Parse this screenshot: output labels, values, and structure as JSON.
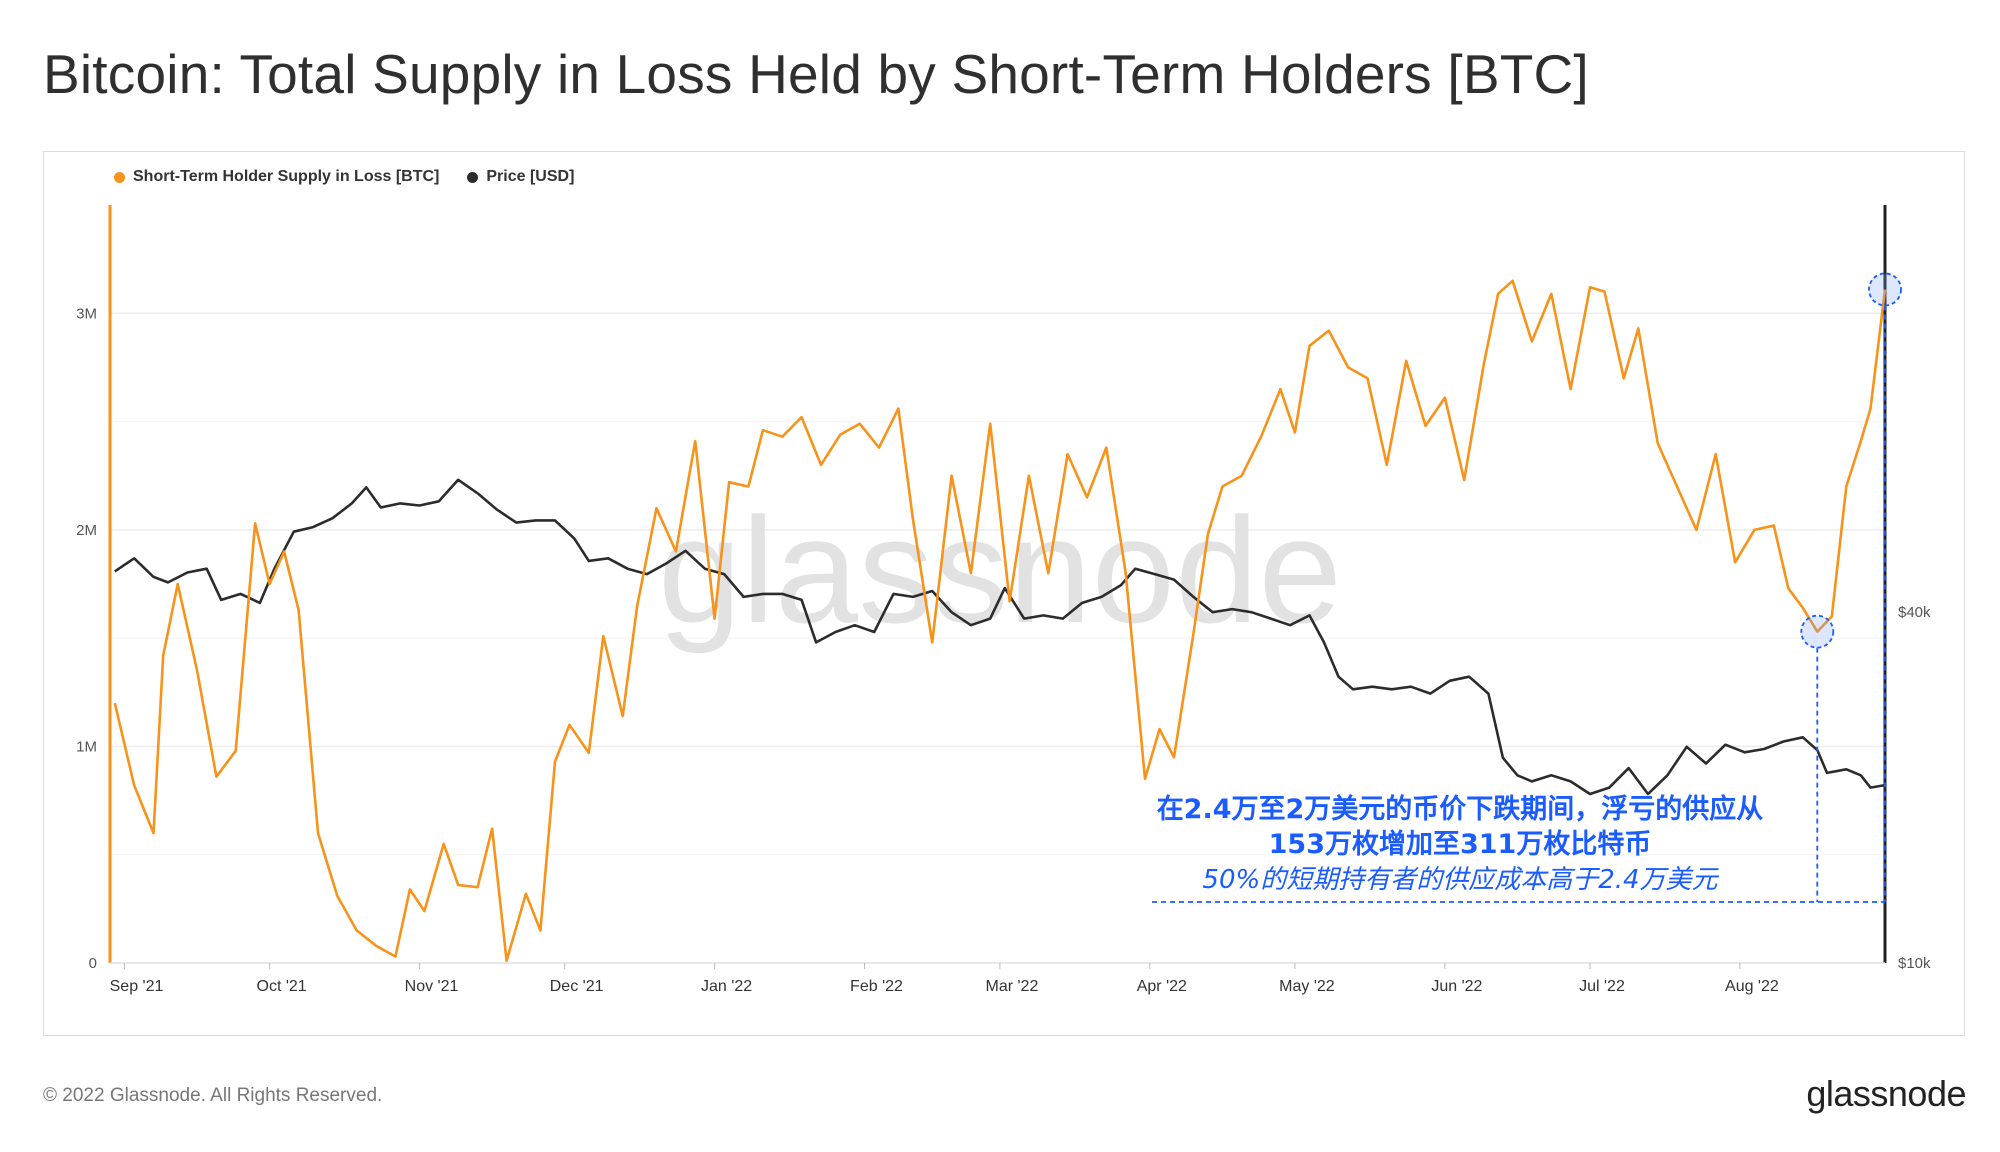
{
  "title": "Bitcoin: Total Supply in Loss Held by Short-Term Holders [BTC]",
  "footer": {
    "copyright": "© 2022 Glassnode. All Rights Reserved.",
    "logo": "glassnode"
  },
  "watermark": "glassnode",
  "colors": {
    "supply": "#f7931a",
    "price": "#2c2c2c",
    "annotation": "#1a5cff",
    "grid": "#ececec"
  },
  "annotation": {
    "line1": "在2.4万至2万美元的币价下跌期间，浮亏的供应从",
    "line2": "153万枚增加至311万枚比特币",
    "line3": "50%的短期持有者的供应成本高于2.4万美元"
  },
  "chart_data": {
    "type": "line",
    "title": "Bitcoin: Total Supply in Loss Held by Short-Term Holders [BTC]",
    "legend_position": "top-left",
    "grid": true,
    "x_ticks": [
      "Sep '21",
      "Oct '21",
      "Nov '21",
      "Dec '21",
      "Jan '22",
      "Feb '22",
      "Mar '22",
      "Apr '22",
      "May '22",
      "Jun '22",
      "Jul '22",
      "Aug '22"
    ],
    "y_left": {
      "ticks": [
        "0",
        "1M",
        "2M",
        "3M"
      ],
      "range": [
        0,
        3500000
      ]
    },
    "y_right": {
      "ticks": [
        "$10k",
        "$40k"
      ],
      "scale": "log",
      "range": [
        10000,
        200000
      ]
    },
    "x_range": [
      "2021-08-29",
      "2022-08-31"
    ],
    "series": [
      {
        "name": "Short-Term Holder Supply in Loss [BTC]",
        "axis": "left",
        "points": [
          [
            "2021-08-30",
            1200000
          ],
          [
            "2021-09-03",
            820000
          ],
          [
            "2021-09-07",
            600000
          ],
          [
            "2021-09-09",
            1420000
          ],
          [
            "2021-09-12",
            1750000
          ],
          [
            "2021-09-16",
            1350000
          ],
          [
            "2021-09-20",
            860000
          ],
          [
            "2021-09-24",
            980000
          ],
          [
            "2021-09-28",
            2030000
          ],
          [
            "2021-10-01",
            1750000
          ],
          [
            "2021-10-04",
            1900000
          ],
          [
            "2021-10-07",
            1630000
          ],
          [
            "2021-10-11",
            600000
          ],
          [
            "2021-10-15",
            310000
          ],
          [
            "2021-10-19",
            150000
          ],
          [
            "2021-10-23",
            80000
          ],
          [
            "2021-10-27",
            30000
          ],
          [
            "2021-10-30",
            340000
          ],
          [
            "2021-11-02",
            240000
          ],
          [
            "2021-11-06",
            550000
          ],
          [
            "2021-11-09",
            360000
          ],
          [
            "2021-11-13",
            350000
          ],
          [
            "2021-11-16",
            620000
          ],
          [
            "2021-11-19",
            10000
          ],
          [
            "2021-11-23",
            320000
          ],
          [
            "2021-11-26",
            150000
          ],
          [
            "2021-11-29",
            930000
          ],
          [
            "2021-12-02",
            1100000
          ],
          [
            "2021-12-06",
            970000
          ],
          [
            "2021-12-09",
            1510000
          ],
          [
            "2021-12-13",
            1140000
          ],
          [
            "2021-12-16",
            1650000
          ],
          [
            "2021-12-20",
            2100000
          ],
          [
            "2021-12-24",
            1900000
          ],
          [
            "2021-12-28",
            2410000
          ],
          [
            "2022-01-01",
            1590000
          ],
          [
            "2022-01-04",
            2220000
          ],
          [
            "2022-01-08",
            2200000
          ],
          [
            "2022-01-11",
            2460000
          ],
          [
            "2022-01-15",
            2430000
          ],
          [
            "2022-01-19",
            2520000
          ],
          [
            "2022-01-23",
            2300000
          ],
          [
            "2022-01-27",
            2440000
          ],
          [
            "2022-01-31",
            2490000
          ],
          [
            "2022-02-04",
            2380000
          ],
          [
            "2022-02-08",
            2560000
          ],
          [
            "2022-02-11",
            2050000
          ],
          [
            "2022-02-15",
            1480000
          ],
          [
            "2022-02-19",
            2250000
          ],
          [
            "2022-02-23",
            1800000
          ],
          [
            "2022-02-27",
            2490000
          ],
          [
            "2022-03-03",
            1670000
          ],
          [
            "2022-03-07",
            2250000
          ],
          [
            "2022-03-11",
            1800000
          ],
          [
            "2022-03-15",
            2350000
          ],
          [
            "2022-03-19",
            2150000
          ],
          [
            "2022-03-23",
            2380000
          ],
          [
            "2022-03-27",
            1800000
          ],
          [
            "2022-03-31",
            850000
          ],
          [
            "2022-04-03",
            1080000
          ],
          [
            "2022-04-06",
            950000
          ],
          [
            "2022-04-10",
            1520000
          ],
          [
            "2022-04-13",
            1980000
          ],
          [
            "2022-04-16",
            2200000
          ],
          [
            "2022-04-20",
            2250000
          ],
          [
            "2022-04-24",
            2430000
          ],
          [
            "2022-04-28",
            2650000
          ],
          [
            "2022-05-01",
            2450000
          ],
          [
            "2022-05-04",
            2850000
          ],
          [
            "2022-05-08",
            2920000
          ],
          [
            "2022-05-12",
            2750000
          ],
          [
            "2022-05-16",
            2700000
          ],
          [
            "2022-05-20",
            2300000
          ],
          [
            "2022-05-24",
            2780000
          ],
          [
            "2022-05-28",
            2480000
          ],
          [
            "2022-06-01",
            2610000
          ],
          [
            "2022-06-05",
            2230000
          ],
          [
            "2022-06-09",
            2760000
          ],
          [
            "2022-06-12",
            3090000
          ],
          [
            "2022-06-15",
            3150000
          ],
          [
            "2022-06-19",
            2870000
          ],
          [
            "2022-06-23",
            3090000
          ],
          [
            "2022-06-27",
            2650000
          ],
          [
            "2022-07-01",
            3120000
          ],
          [
            "2022-07-04",
            3100000
          ],
          [
            "2022-07-08",
            2700000
          ],
          [
            "2022-07-11",
            2930000
          ],
          [
            "2022-07-15",
            2400000
          ],
          [
            "2022-07-19",
            2200000
          ],
          [
            "2022-07-23",
            2000000
          ],
          [
            "2022-07-27",
            2350000
          ],
          [
            "2022-07-31",
            1850000
          ],
          [
            "2022-08-04",
            2000000
          ],
          [
            "2022-08-08",
            2020000
          ],
          [
            "2022-08-11",
            1730000
          ],
          [
            "2022-08-14",
            1640000
          ],
          [
            "2022-08-17",
            1530000
          ],
          [
            "2022-08-20",
            1600000
          ],
          [
            "2022-08-23",
            2200000
          ],
          [
            "2022-08-26",
            2410000
          ],
          [
            "2022-08-28",
            2560000
          ],
          [
            "2022-08-31",
            3110000
          ]
        ]
      },
      {
        "name": "Price [USD]",
        "axis": "right",
        "points": [
          [
            "2021-08-30",
            47000
          ],
          [
            "2021-09-03",
            49500
          ],
          [
            "2021-09-07",
            46000
          ],
          [
            "2021-09-10",
            45000
          ],
          [
            "2021-09-14",
            46800
          ],
          [
            "2021-09-18",
            47500
          ],
          [
            "2021-09-21",
            42000
          ],
          [
            "2021-09-25",
            43000
          ],
          [
            "2021-09-29",
            41500
          ],
          [
            "2021-10-02",
            47500
          ],
          [
            "2021-10-06",
            55000
          ],
          [
            "2021-10-10",
            56000
          ],
          [
            "2021-10-14",
            58000
          ],
          [
            "2021-10-18",
            61500
          ],
          [
            "2021-10-21",
            65500
          ],
          [
            "2021-10-24",
            60500
          ],
          [
            "2021-10-28",
            61500
          ],
          [
            "2021-11-01",
            61000
          ],
          [
            "2021-11-05",
            62000
          ],
          [
            "2021-11-09",
            67500
          ],
          [
            "2021-11-13",
            64000
          ],
          [
            "2021-11-17",
            60000
          ],
          [
            "2021-11-21",
            57000
          ],
          [
            "2021-11-25",
            57500
          ],
          [
            "2021-11-29",
            57500
          ],
          [
            "2021-12-03",
            53500
          ],
          [
            "2021-12-06",
            49000
          ],
          [
            "2021-12-10",
            49500
          ],
          [
            "2021-12-14",
            47500
          ],
          [
            "2021-12-18",
            46500
          ],
          [
            "2021-12-22",
            48500
          ],
          [
            "2021-12-26",
            51000
          ],
          [
            "2021-12-30",
            47500
          ],
          [
            "2022-01-03",
            46500
          ],
          [
            "2022-01-07",
            42500
          ],
          [
            "2022-01-11",
            43000
          ],
          [
            "2022-01-15",
            43000
          ],
          [
            "2022-01-19",
            42000
          ],
          [
            "2022-01-22",
            35500
          ],
          [
            "2022-01-26",
            37000
          ],
          [
            "2022-01-30",
            38000
          ],
          [
            "2022-02-03",
            37000
          ],
          [
            "2022-02-07",
            43000
          ],
          [
            "2022-02-11",
            42500
          ],
          [
            "2022-02-15",
            43500
          ],
          [
            "2022-02-19",
            40000
          ],
          [
            "2022-02-23",
            38000
          ],
          [
            "2022-02-27",
            39000
          ],
          [
            "2022-03-02",
            44000
          ],
          [
            "2022-03-06",
            39000
          ],
          [
            "2022-03-10",
            39500
          ],
          [
            "2022-03-14",
            39000
          ],
          [
            "2022-03-18",
            41500
          ],
          [
            "2022-03-22",
            42500
          ],
          [
            "2022-03-26",
            44500
          ],
          [
            "2022-03-29",
            47500
          ],
          [
            "2022-04-02",
            46500
          ],
          [
            "2022-04-06",
            45500
          ],
          [
            "2022-04-10",
            42500
          ],
          [
            "2022-04-14",
            40000
          ],
          [
            "2022-04-18",
            40500
          ],
          [
            "2022-04-22",
            40000
          ],
          [
            "2022-04-26",
            39000
          ],
          [
            "2022-04-30",
            38000
          ],
          [
            "2022-05-04",
            39500
          ],
          [
            "2022-05-07",
            35500
          ],
          [
            "2022-05-10",
            31000
          ],
          [
            "2022-05-13",
            29500
          ],
          [
            "2022-05-17",
            29800
          ],
          [
            "2022-05-21",
            29500
          ],
          [
            "2022-05-25",
            29800
          ],
          [
            "2022-05-29",
            29000
          ],
          [
            "2022-06-02",
            30500
          ],
          [
            "2022-06-06",
            31000
          ],
          [
            "2022-06-10",
            29000
          ],
          [
            "2022-06-13",
            22500
          ],
          [
            "2022-06-16",
            21000
          ],
          [
            "2022-06-19",
            20500
          ],
          [
            "2022-06-23",
            21000
          ],
          [
            "2022-06-27",
            20500
          ],
          [
            "2022-07-01",
            19500
          ],
          [
            "2022-07-05",
            20000
          ],
          [
            "2022-07-09",
            21600
          ],
          [
            "2022-07-13",
            19500
          ],
          [
            "2022-07-17",
            21000
          ],
          [
            "2022-07-21",
            23500
          ],
          [
            "2022-07-25",
            22000
          ],
          [
            "2022-07-29",
            23700
          ],
          [
            "2022-08-02",
            23000
          ],
          [
            "2022-08-06",
            23300
          ],
          [
            "2022-08-10",
            24000
          ],
          [
            "2022-08-14",
            24400
          ],
          [
            "2022-08-17",
            23200
          ],
          [
            "2022-08-19",
            21200
          ],
          [
            "2022-08-23",
            21500
          ],
          [
            "2022-08-26",
            21000
          ],
          [
            "2022-08-28",
            20000
          ],
          [
            "2022-08-31",
            20200
          ]
        ]
      }
    ]
  }
}
